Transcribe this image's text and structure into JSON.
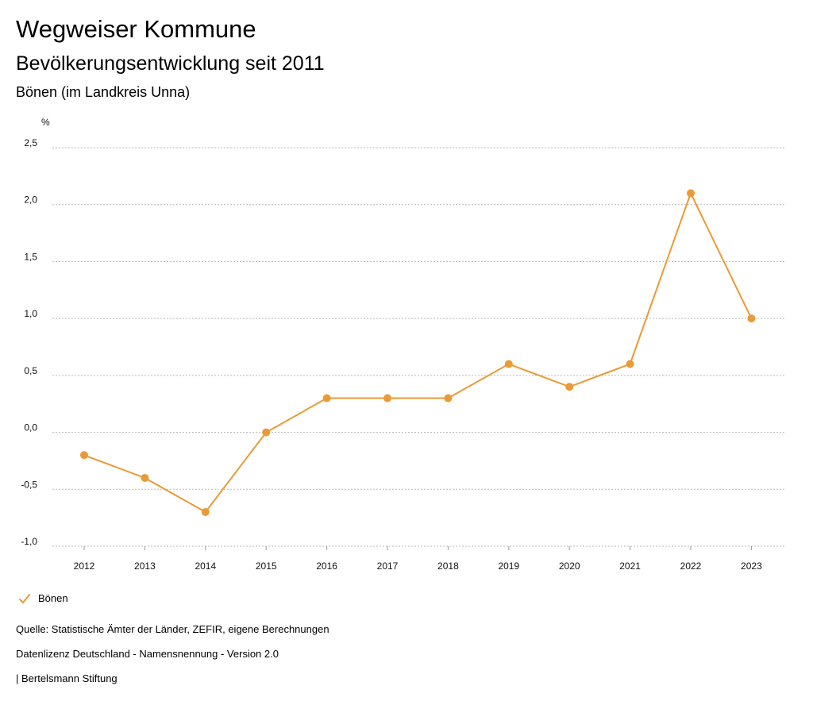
{
  "header": {
    "title": "Wegweiser Kommune",
    "subtitle": "Bevölkerungsentwicklung seit 2011",
    "region": "Bönen (im Landkreis Unna)"
  },
  "chart_data": {
    "type": "line",
    "title": "Bevölkerungsentwicklung seit 2011",
    "xlabel": "",
    "ylabel": "%",
    "categories": [
      "2012",
      "2013",
      "2014",
      "2015",
      "2016",
      "2017",
      "2018",
      "2019",
      "2020",
      "2021",
      "2022",
      "2023"
    ],
    "series": [
      {
        "name": "Bönen",
        "values": [
          -0.2,
          -0.4,
          -0.7,
          0.0,
          0.3,
          0.3,
          0.3,
          0.6,
          0.4,
          0.6,
          2.1,
          1.0
        ]
      }
    ],
    "ylim": [
      -1.0,
      2.5
    ],
    "yticks": [
      -1.0,
      -0.5,
      0.0,
      0.5,
      1.0,
      1.5,
      2.0,
      2.5
    ],
    "ytick_labels": [
      "-1,0",
      "-0,5",
      "0,0",
      "0,5",
      "1,0",
      "1,5",
      "2,0",
      "2,5"
    ],
    "grid": true,
    "legend_position": "bottom-left",
    "colors": {
      "series": "#ea9a36",
      "grid": "#b8b8b8"
    }
  },
  "legend": {
    "label": "Bönen"
  },
  "footer": {
    "source": "Quelle: Statistische Ämter der Länder, ZEFIR, eigene Berechnungen",
    "license": "Datenlizenz Deutschland - Namensnennung - Version 2.0",
    "publisher": "| Bertelsmann Stiftung"
  }
}
